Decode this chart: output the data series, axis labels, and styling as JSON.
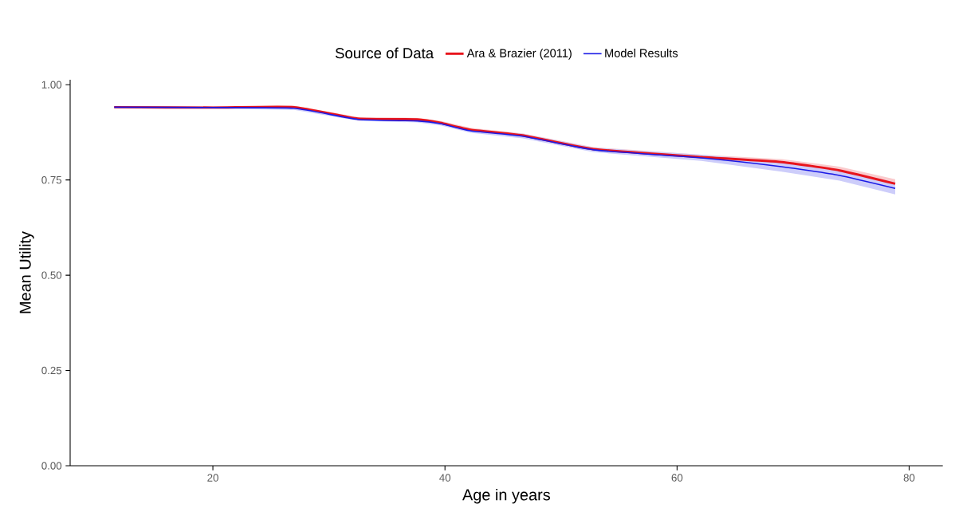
{
  "chart_data": {
    "type": "line",
    "xlabel": "Age in years",
    "ylabel": "Mean Utility",
    "legend_title": "Source of Data",
    "legend": "top",
    "xlim": [
      7.7,
      82.9
    ],
    "ylim": [
      0,
      1.013
    ],
    "xticks": [
      20,
      40,
      60,
      80
    ],
    "yticks": [
      {
        "value": 0,
        "label": "0.00"
      },
      {
        "value": 0.25,
        "label": "0.25"
      },
      {
        "value": 0.5,
        "label": "0.50"
      },
      {
        "value": 0.75,
        "label": "0.75"
      },
      {
        "value": 1,
        "label": "1.00"
      }
    ],
    "series": [
      {
        "name": "Ara & Brazier (2011)",
        "color": "#e8141c",
        "x": [
          11.5,
          20,
          27,
          32.5,
          37.6,
          39.6,
          42.2,
          46.7,
          52.8,
          62.1,
          69,
          74,
          78.8
        ],
        "values": [
          0.941,
          0.94,
          0.941,
          0.911,
          0.909,
          0.9,
          0.882,
          0.867,
          0.831,
          0.81,
          0.797,
          0.775,
          0.74
        ],
        "lower": [
          0.938,
          0.937,
          0.937,
          0.907,
          0.905,
          0.895,
          0.877,
          0.862,
          0.826,
          0.804,
          0.789,
          0.765,
          0.728
        ],
        "upper": [
          0.944,
          0.943,
          0.945,
          0.915,
          0.913,
          0.905,
          0.887,
          0.872,
          0.836,
          0.816,
          0.805,
          0.785,
          0.752
        ]
      },
      {
        "name": "Model Results",
        "color": "#1a1ae6",
        "x": [
          11.5,
          20,
          27,
          32.5,
          37.6,
          39.6,
          42.2,
          46.7,
          52.8,
          62.1,
          69,
          74,
          78.8
        ],
        "values": [
          0.941,
          0.94,
          0.938,
          0.909,
          0.905,
          0.898,
          0.879,
          0.865,
          0.829,
          0.808,
          0.785,
          0.762,
          0.728
        ],
        "lower": [
          0.938,
          0.937,
          0.934,
          0.905,
          0.901,
          0.893,
          0.874,
          0.859,
          0.823,
          0.8,
          0.772,
          0.748,
          0.712
        ],
        "upper": [
          0.944,
          0.943,
          0.942,
          0.913,
          0.909,
          0.903,
          0.884,
          0.871,
          0.835,
          0.816,
          0.798,
          0.776,
          0.744
        ]
      }
    ]
  }
}
